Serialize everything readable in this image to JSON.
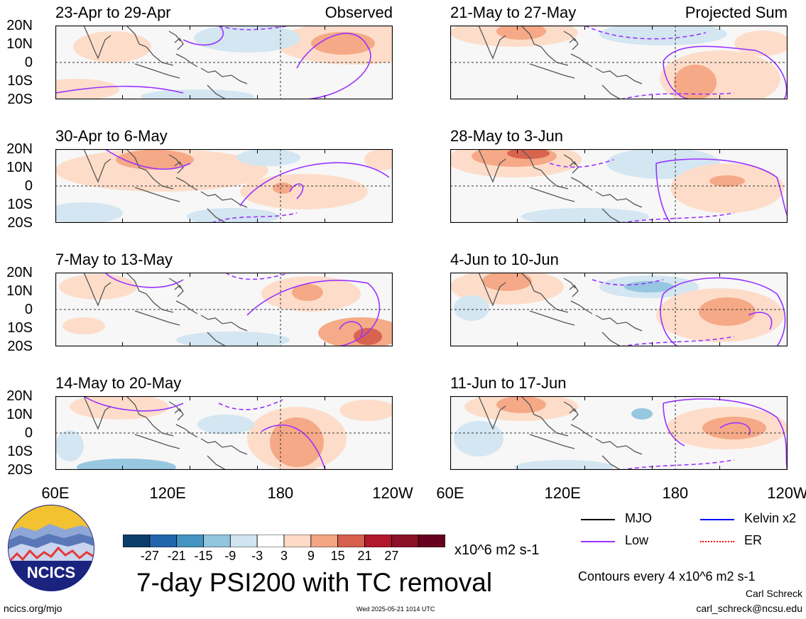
{
  "chart_data": {
    "type": "map-panels",
    "headers": {
      "left": "Observed",
      "right": "Projected Sum"
    },
    "panels": [
      {
        "id": "p1",
        "col": 0,
        "row": 0,
        "title": "23-Apr to 29-Apr",
        "header": "Observed"
      },
      {
        "id": "p2",
        "col": 0,
        "row": 1,
        "title": "30-Apr to 6-May"
      },
      {
        "id": "p3",
        "col": 0,
        "row": 2,
        "title": "7-May to 13-May"
      },
      {
        "id": "p4",
        "col": 0,
        "row": 3,
        "title": "14-May to 20-May"
      },
      {
        "id": "p5",
        "col": 1,
        "row": 0,
        "title": "21-May to 27-May",
        "header": "Projected Sum"
      },
      {
        "id": "p6",
        "col": 1,
        "row": 1,
        "title": "28-May to 3-Jun"
      },
      {
        "id": "p7",
        "col": 1,
        "row": 2,
        "title": "4-Jun to 10-Jun"
      },
      {
        "id": "p8",
        "col": 1,
        "row": 3,
        "title": "11-Jun to 17-Jun"
      }
    ],
    "y_ticks": [
      "20N",
      "10N",
      "0",
      "10S",
      "20S"
    ],
    "x_ticks_left": [
      "60E",
      "120E",
      "180",
      "120W"
    ],
    "x_ticks_right": [
      "60E",
      "120E",
      "180",
      "120W"
    ],
    "colorbar": {
      "colors": [
        "#0b3d6b",
        "#2166ac",
        "#4393c3",
        "#92c5de",
        "#d1e5f0",
        "#ffffff",
        "#fddbc7",
        "#f4a582",
        "#d6604d",
        "#b2182b",
        "#8b1128",
        "#67001f"
      ],
      "labels": [
        "-27",
        "-21",
        "-15",
        "-9",
        "-3",
        "3",
        "9",
        "15",
        "21",
        "27"
      ],
      "units": "x10^6 m2 s-1"
    },
    "title": "7-day PSI200 with TC removal",
    "legend": [
      {
        "label": "MJO",
        "color": "#000000"
      },
      {
        "label": "Kelvin x2",
        "color": "#0000ff"
      },
      {
        "label": "Low",
        "color": "#9933ff"
      },
      {
        "label": "ER",
        "color": "#ff0000"
      }
    ],
    "contour_note": "Contours every 4 x10^6 m2 s-1"
  },
  "logo": {
    "text": "NCICS"
  },
  "footer": {
    "url": "ncics.org/mjo",
    "timestamp": "Wed 2025-05-21 1014 UTC",
    "author": "Carl Schreck",
    "email": "carl_schreck@ncsu.edu"
  }
}
